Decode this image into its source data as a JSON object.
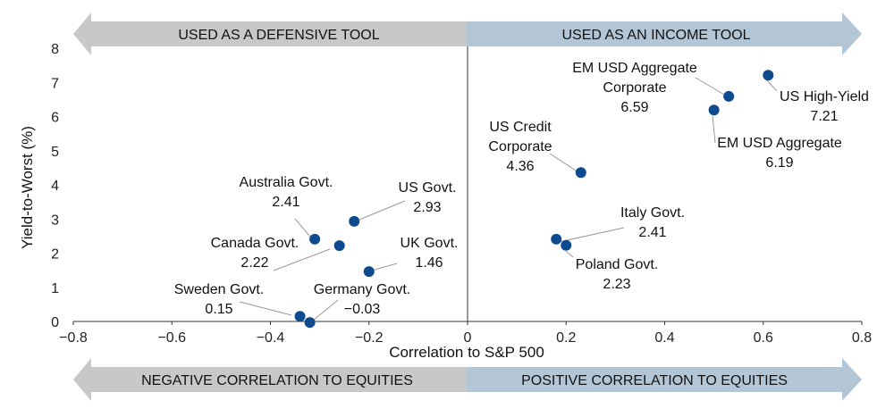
{
  "chart_data": {
    "type": "scatter",
    "title": "",
    "xlabel": "Correlation to S&P 500",
    "ylabel": "Yield-to-Worst (%)",
    "xlim": [
      -0.8,
      0.8
    ],
    "ylim": [
      0,
      8
    ],
    "xticks": [
      "−0.8",
      "−0.6",
      "−0.4",
      "−0.2",
      "0",
      "0.2",
      "0.4",
      "0.6",
      "0.8"
    ],
    "yticks": [
      "0",
      "1",
      "2",
      "3",
      "4",
      "5",
      "6",
      "7",
      "8"
    ],
    "top_band": {
      "left": "USED AS A DEFENSIVE TOOL",
      "right": "USED AS AN INCOME TOOL"
    },
    "bottom_band": {
      "left": "NEGATIVE CORRELATION TO EQUITIES",
      "right": "POSITIVE CORRELATION TO EQUITIES"
    },
    "colors": {
      "point": "#0d4a8e",
      "band_left": "#c8c8c8",
      "band_right": "#b3c6d6",
      "leader": "#999999"
    },
    "points": [
      {
        "name": [
          "US High-Yield"
        ],
        "value": "7.21",
        "x": 0.61,
        "y": 7.21
      },
      {
        "name": [
          "EM USD Aggregate",
          "Corporate"
        ],
        "value": "6.59",
        "x": 0.53,
        "y": 6.59
      },
      {
        "name": [
          "EM USD Aggregate"
        ],
        "value": "6.19",
        "x": 0.5,
        "y": 6.19
      },
      {
        "name": [
          "US Credit",
          "Corporate"
        ],
        "value": "4.36",
        "x": 0.23,
        "y": 4.36
      },
      {
        "name": [
          "Italy Govt."
        ],
        "value": "2.41",
        "x": 0.18,
        "y": 2.41
      },
      {
        "name": [
          "Poland Govt."
        ],
        "value": "2.23",
        "x": 0.2,
        "y": 2.23
      },
      {
        "name": [
          "US Govt."
        ],
        "value": "2.93",
        "x": -0.23,
        "y": 2.93
      },
      {
        "name": [
          "Australia Govt."
        ],
        "value": "2.41",
        "x": -0.31,
        "y": 2.41
      },
      {
        "name": [
          "Canada Govt."
        ],
        "value": "2.22",
        "x": -0.26,
        "y": 2.22
      },
      {
        "name": [
          "UK Govt."
        ],
        "value": "1.46",
        "x": -0.2,
        "y": 1.46
      },
      {
        "name": [
          "Sweden Govt."
        ],
        "value": "0.15",
        "x": -0.34,
        "y": 0.15
      },
      {
        "name": [
          "Germany Govt."
        ],
        "value": "−0.03",
        "x": -0.32,
        "y": -0.03
      }
    ]
  }
}
